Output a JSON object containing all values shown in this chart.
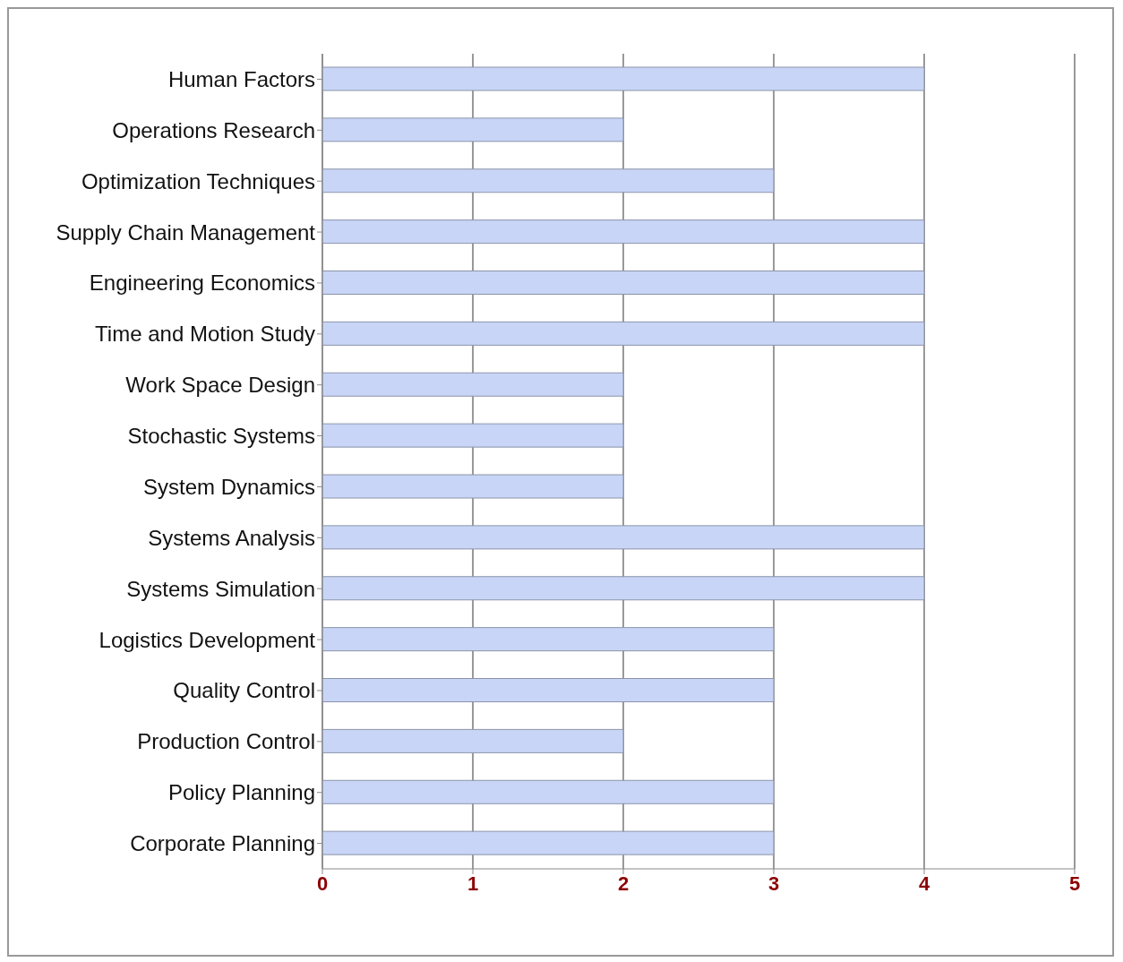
{
  "chart_data": {
    "type": "bar",
    "orientation": "horizontal",
    "categories": [
      "Human Factors",
      "Operations Research",
      "Optimization Techniques",
      "Supply Chain Management",
      "Engineering Economics",
      "Time and Motion Study",
      "Work Space Design",
      "Stochastic Systems",
      "System Dynamics",
      "Systems Analysis",
      "Systems Simulation",
      "Logistics Development",
      "Quality Control",
      "Production Control",
      "Policy Planning",
      "Corporate Planning"
    ],
    "values": [
      4,
      2,
      3,
      4,
      4,
      4,
      2,
      2,
      2,
      4,
      4,
      3,
      3,
      2,
      3,
      3
    ],
    "color": "#c9d5f7",
    "xlim": [
      0,
      5
    ],
    "xticks": [
      0,
      1,
      2,
      3,
      4,
      5
    ],
    "grid": "x"
  }
}
